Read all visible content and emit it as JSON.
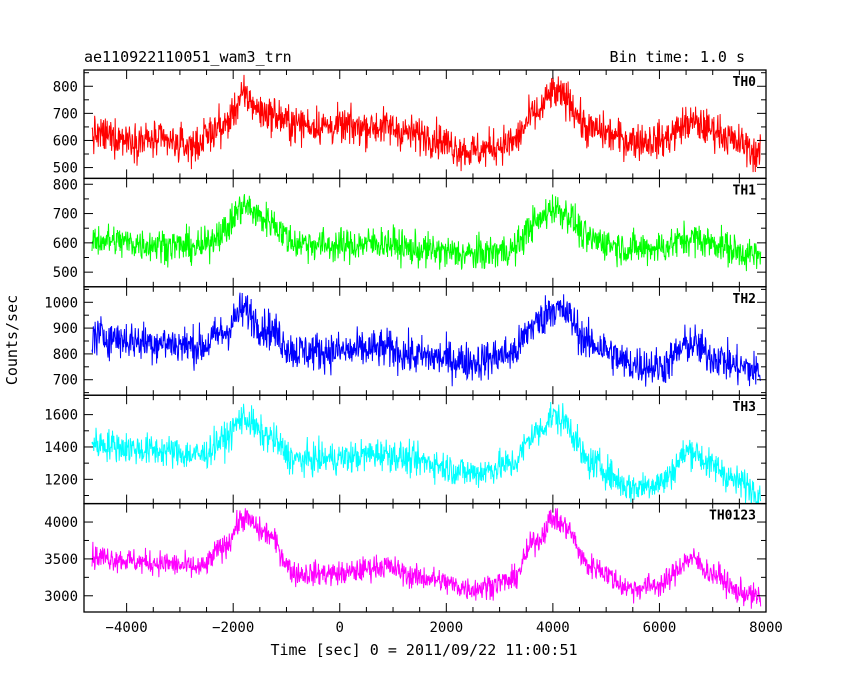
{
  "header": {
    "title": "ae110922110051_wam3_trn",
    "bin_time": "Bin time: 1.0 s"
  },
  "chart_data": {
    "type": "line",
    "xlabel": "Time [sec] 0 = 2011/09/22 11:00:51",
    "ylabel": "Counts/sec",
    "xlim": [
      -4800,
      8000
    ],
    "xticks": [
      -4000,
      -2000,
      0,
      2000,
      4000,
      6000,
      8000
    ],
    "x_data_range": [
      -4650,
      7900
    ],
    "panels": [
      {
        "name": "TH0",
        "color": "#ff0000",
        "ylim": [
          460,
          860
        ],
        "yticks": [
          500,
          600,
          700,
          800
        ],
        "noise": 45,
        "trend_x": [
          -4650,
          -3500,
          -2800,
          -2200,
          -1800,
          -1400,
          -800,
          0,
          800,
          1500,
          2500,
          3200,
          3700,
          4000,
          4200,
          4700,
          5500,
          6000,
          6600,
          7000,
          7500,
          7900
        ],
        "trend_y": [
          620,
          600,
          580,
          650,
          760,
          700,
          660,
          650,
          650,
          620,
          560,
          590,
          700,
          775,
          760,
          640,
          600,
          600,
          665,
          640,
          590,
          545
        ]
      },
      {
        "name": "TH1",
        "color": "#00ff00",
        "ylim": [
          450,
          820
        ],
        "yticks": [
          500,
          600,
          700,
          800
        ],
        "noise": 38,
        "trend_x": [
          -4650,
          -3500,
          -2600,
          -2200,
          -1800,
          -1400,
          -800,
          0,
          800,
          1500,
          2500,
          3200,
          3700,
          4000,
          4200,
          4700,
          5500,
          6000,
          6600,
          7000,
          7500,
          7900
        ],
        "trend_y": [
          610,
          595,
          585,
          640,
          725,
          680,
          600,
          590,
          600,
          575,
          560,
          575,
          670,
          720,
          705,
          610,
          580,
          585,
          615,
          600,
          570,
          550
        ]
      },
      {
        "name": "TH2",
        "color": "#0000ff",
        "ylim": [
          640,
          1060
        ],
        "yticks": [
          700,
          800,
          900,
          1000
        ],
        "noise": 50,
        "trend_x": [
          -4650,
          -3500,
          -2600,
          -2200,
          -1800,
          -1400,
          -800,
          0,
          800,
          1500,
          2500,
          3200,
          3700,
          4000,
          4200,
          4700,
          5500,
          6000,
          6600,
          7000,
          7500,
          7900
        ],
        "trend_y": [
          870,
          845,
          830,
          880,
          970,
          900,
          810,
          810,
          820,
          790,
          770,
          800,
          920,
          980,
          960,
          840,
          760,
          750,
          840,
          790,
          750,
          730
        ]
      },
      {
        "name": "TH3",
        "color": "#00ffff",
        "ylim": [
          1050,
          1720
        ],
        "yticks": [
          1200,
          1400,
          1600
        ],
        "noise": 65,
        "trend_x": [
          -4650,
          -3500,
          -2600,
          -2200,
          -1800,
          -1400,
          -800,
          0,
          800,
          1500,
          2500,
          3200,
          3700,
          4000,
          4200,
          4700,
          5500,
          6000,
          6600,
          7000,
          7500,
          7900
        ],
        "trend_y": [
          1420,
          1380,
          1350,
          1440,
          1580,
          1470,
          1320,
          1330,
          1360,
          1310,
          1240,
          1290,
          1490,
          1590,
          1560,
          1300,
          1150,
          1180,
          1380,
          1280,
          1180,
          1120
        ]
      },
      {
        "name": "TH0123",
        "color": "#ff00ff",
        "ylim": [
          2780,
          4250
        ],
        "yticks": [
          3000,
          3500,
          4000
        ],
        "noise": 110,
        "trend_x": [
          -4650,
          -3500,
          -2600,
          -2200,
          -1800,
          -1400,
          -800,
          0,
          800,
          1500,
          2500,
          3200,
          3700,
          4000,
          4200,
          4700,
          5500,
          6000,
          6600,
          7000,
          7500,
          7900
        ],
        "trend_y": [
          3530,
          3450,
          3380,
          3650,
          4050,
          3850,
          3300,
          3300,
          3400,
          3250,
          3100,
          3200,
          3750,
          4050,
          3950,
          3400,
          3100,
          3150,
          3500,
          3300,
          3050,
          2970
        ]
      }
    ]
  }
}
